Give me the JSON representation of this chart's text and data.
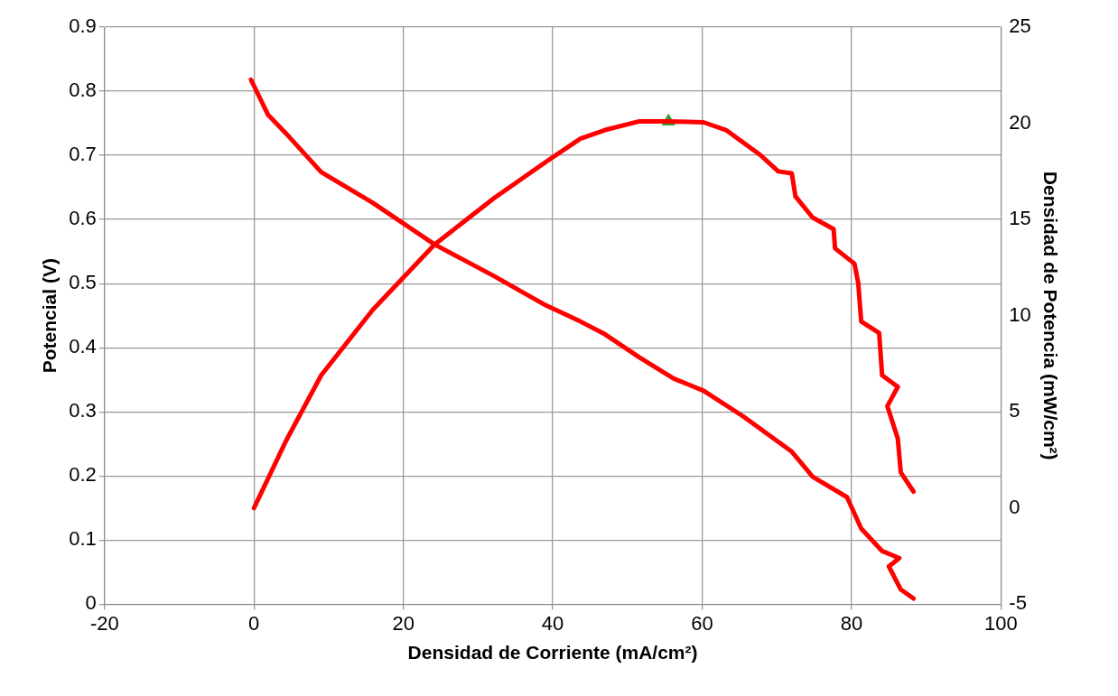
{
  "chart_data": {
    "type": "line",
    "xlabel": "Densidad de Corriente (mA/cm²)",
    "ylabel": "Potencial (V)",
    "y2label": "Densidad de Potencia (mW/cm²)",
    "xlim": [
      -20,
      100
    ],
    "xticks": [
      -20,
      0,
      20,
      40,
      60,
      80,
      100
    ],
    "ylim": [
      0,
      0.9
    ],
    "yticks": [
      0,
      0.1,
      0.2,
      0.3,
      0.4,
      0.5,
      0.6,
      0.7,
      0.8,
      0.9
    ],
    "y2lim": [
      -5,
      25
    ],
    "y2ticks": [
      -5,
      0,
      5,
      10,
      15,
      20,
      25
    ],
    "grid": true,
    "legend": false,
    "series": [
      {
        "type": "line",
        "color": "#ff0000",
        "marker": "none",
        "x": [
          -0.4,
          1.9,
          4.3,
          9.0,
          15.9,
          24.2,
          32.1,
          39.1,
          43.7,
          47.0,
          51.6,
          56.2,
          60.2,
          65.5,
          72.0,
          74.8,
          79.4,
          81.3,
          84.1,
          86.4,
          85.0,
          86.6,
          88.3
        ],
        "values": [
          0.818,
          0.763,
          0.734,
          0.674,
          0.626,
          0.561,
          0.512,
          0.466,
          0.441,
          0.421,
          0.385,
          0.352,
          0.333,
          0.293,
          0.238,
          0.199,
          0.167,
          0.118,
          0.083,
          0.072,
          0.059,
          0.023,
          0.009
        ]
      },
      {
        "type": "line",
        "color": "#ff0000",
        "marker": "none",
        "axis": "y2",
        "x": [
          0,
          4.3,
          9.0,
          15.9,
          24.2,
          32.1,
          39.1,
          43.7,
          47.0,
          51.6,
          55.3,
          60.2,
          63.2,
          67.8,
          70.2,
          72.0,
          72.5,
          74.8,
          77.6,
          77.8,
          80.4,
          80.9,
          81.3,
          83.7,
          84.1,
          86.2,
          84.8,
          86.2,
          86.6,
          88.3
        ],
        "values": [
          0,
          3.5,
          6.9,
          10.3,
          13.7,
          16.1,
          18.0,
          19.2,
          19.65,
          20.1,
          20.1,
          20.05,
          19.65,
          18.35,
          17.5,
          17.4,
          16.2,
          15.1,
          14.5,
          13.5,
          12.7,
          11.7,
          9.7,
          9.1,
          6.9,
          6.3,
          5.3,
          3.6,
          1.85,
          0.86
        ]
      },
      {
        "type": "scatter",
        "color": "#2ca02c",
        "marker": "triangle",
        "axis": "y2",
        "x": [
          55.5
        ],
        "values": [
          20.1
        ]
      }
    ]
  }
}
